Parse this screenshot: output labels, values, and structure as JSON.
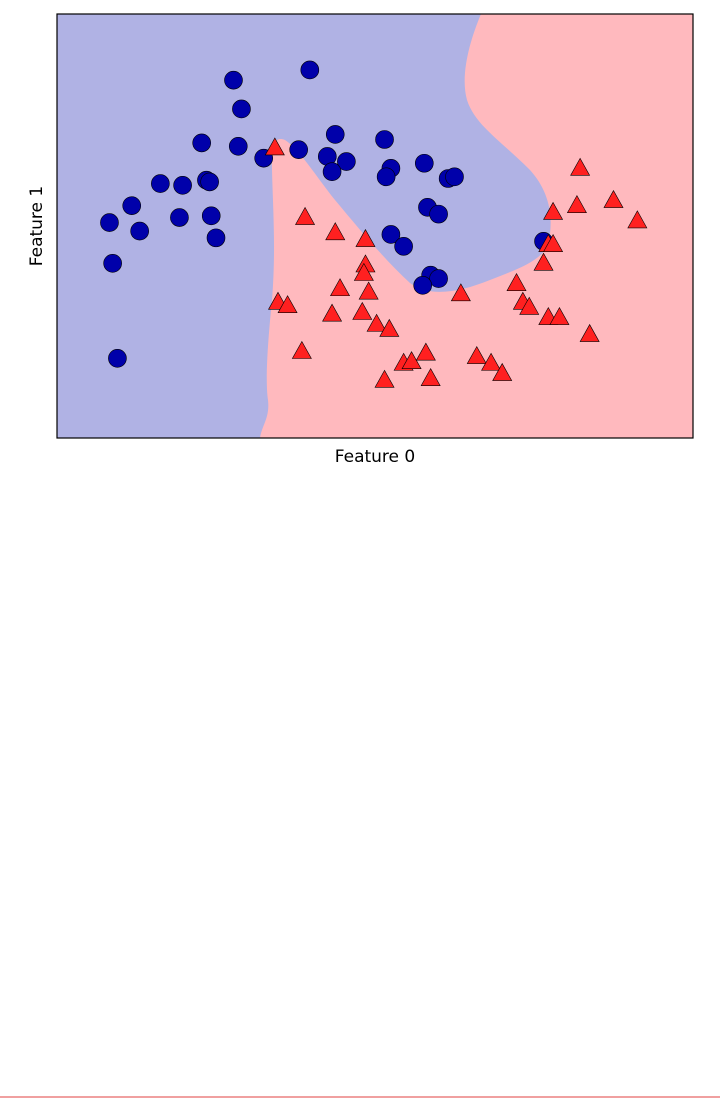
{
  "chart_data": {
    "type": "scatter",
    "xlabel": "Feature 0",
    "ylabel": "Feature 1",
    "xlim": [
      -1.5,
      2.5
    ],
    "ylim": [
      -1,
      1.5
    ],
    "series": [
      {
        "color": "#0000aa",
        "marker": "o",
        "x": [
          -0.39,
          0.09,
          -0.34,
          -0.59,
          -0.36,
          -0.2,
          0.02,
          0.25,
          0.2,
          0.32,
          0.23,
          0.56,
          0.6,
          0.57,
          0.81,
          0.96,
          1.0,
          -0.85,
          -0.71,
          -0.56,
          -0.54,
          -1.03,
          -1.17,
          -0.98,
          -0.73,
          -0.53,
          -0.5,
          -1.15,
          0.83,
          0.9,
          0.6,
          0.68,
          0.85,
          0.9,
          0.8,
          1.56,
          -1.12
        ],
        "values": [
          1.11,
          1.17,
          0.94,
          0.74,
          0.72,
          0.65,
          0.7,
          0.79,
          0.66,
          0.63,
          0.57,
          0.76,
          0.59,
          0.54,
          0.62,
          0.53,
          0.54,
          0.5,
          0.49,
          0.52,
          0.51,
          0.37,
          0.27,
          0.22,
          0.3,
          0.31,
          0.18,
          0.03,
          0.36,
          0.32,
          0.2,
          0.13,
          -0.04,
          -0.06,
          -0.1,
          0.16,
          -0.53
        ]
      },
      {
        "color": "#ff2020",
        "marker": "^",
        "x": [
          -0.13,
          0.06,
          0.25,
          0.44,
          0.44,
          0.43,
          0.28,
          0.46,
          -0.11,
          -0.05,
          0.23,
          0.42,
          0.51,
          0.59,
          0.04,
          0.56,
          0.68,
          0.73,
          0.82,
          0.85,
          1.04,
          1.14,
          1.23,
          1.3,
          1.39,
          1.43,
          1.47,
          1.59,
          1.66,
          1.85,
          1.56,
          1.59,
          1.62,
          1.62,
          1.77,
          1.79,
          2.0,
          2.15
        ],
        "values": [
          0.71,
          0.3,
          0.21,
          0.17,
          0.02,
          -0.03,
          -0.12,
          -0.14,
          -0.2,
          -0.22,
          -0.27,
          -0.26,
          -0.33,
          -0.36,
          -0.49,
          -0.66,
          -0.56,
          -0.55,
          -0.5,
          -0.65,
          -0.15,
          -0.52,
          -0.56,
          -0.62,
          -0.09,
          -0.2,
          -0.23,
          -0.29,
          -0.29,
          -0.39,
          0.03,
          0.14,
          0.14,
          0.33,
          0.37,
          0.59,
          0.4,
          0.28
        ]
      }
    ]
  }
}
